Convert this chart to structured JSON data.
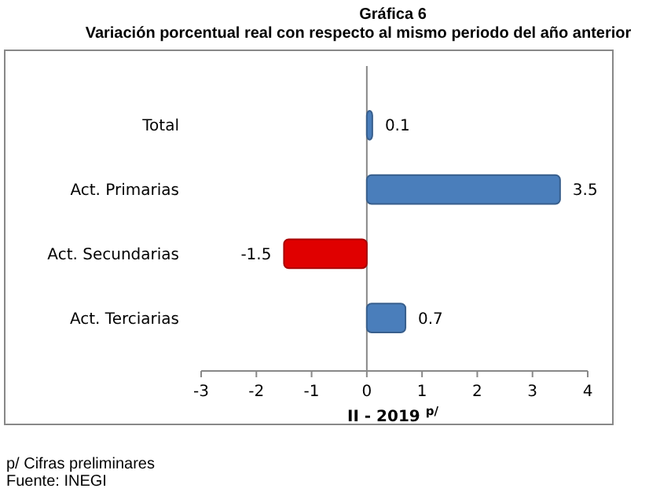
{
  "chart_data": {
    "type": "bar",
    "orientation": "horizontal",
    "title": "Gráfica 6",
    "subtitle": "Variación porcentual real con respecto al mismo periodo del año anterior",
    "xlabel": "II - 2019 $^{p/}$",
    "categories": [
      "Total",
      "Act. Primarias",
      "Act. Secundarias",
      "Act. Terciarias"
    ],
    "values": [
      0.1,
      3.5,
      -1.5,
      0.7
    ],
    "colors": [
      "#4a7ebb",
      "#4a7ebb",
      "#e00000",
      "#4a7ebb"
    ],
    "xlim": [
      -3,
      4
    ],
    "xticks": [
      -3,
      -2,
      -1,
      0,
      1,
      2,
      3,
      4
    ],
    "data_labels": true,
    "annotations": [
      "p/ Cifras preliminares",
      "Fuente: INEGI"
    ]
  }
}
